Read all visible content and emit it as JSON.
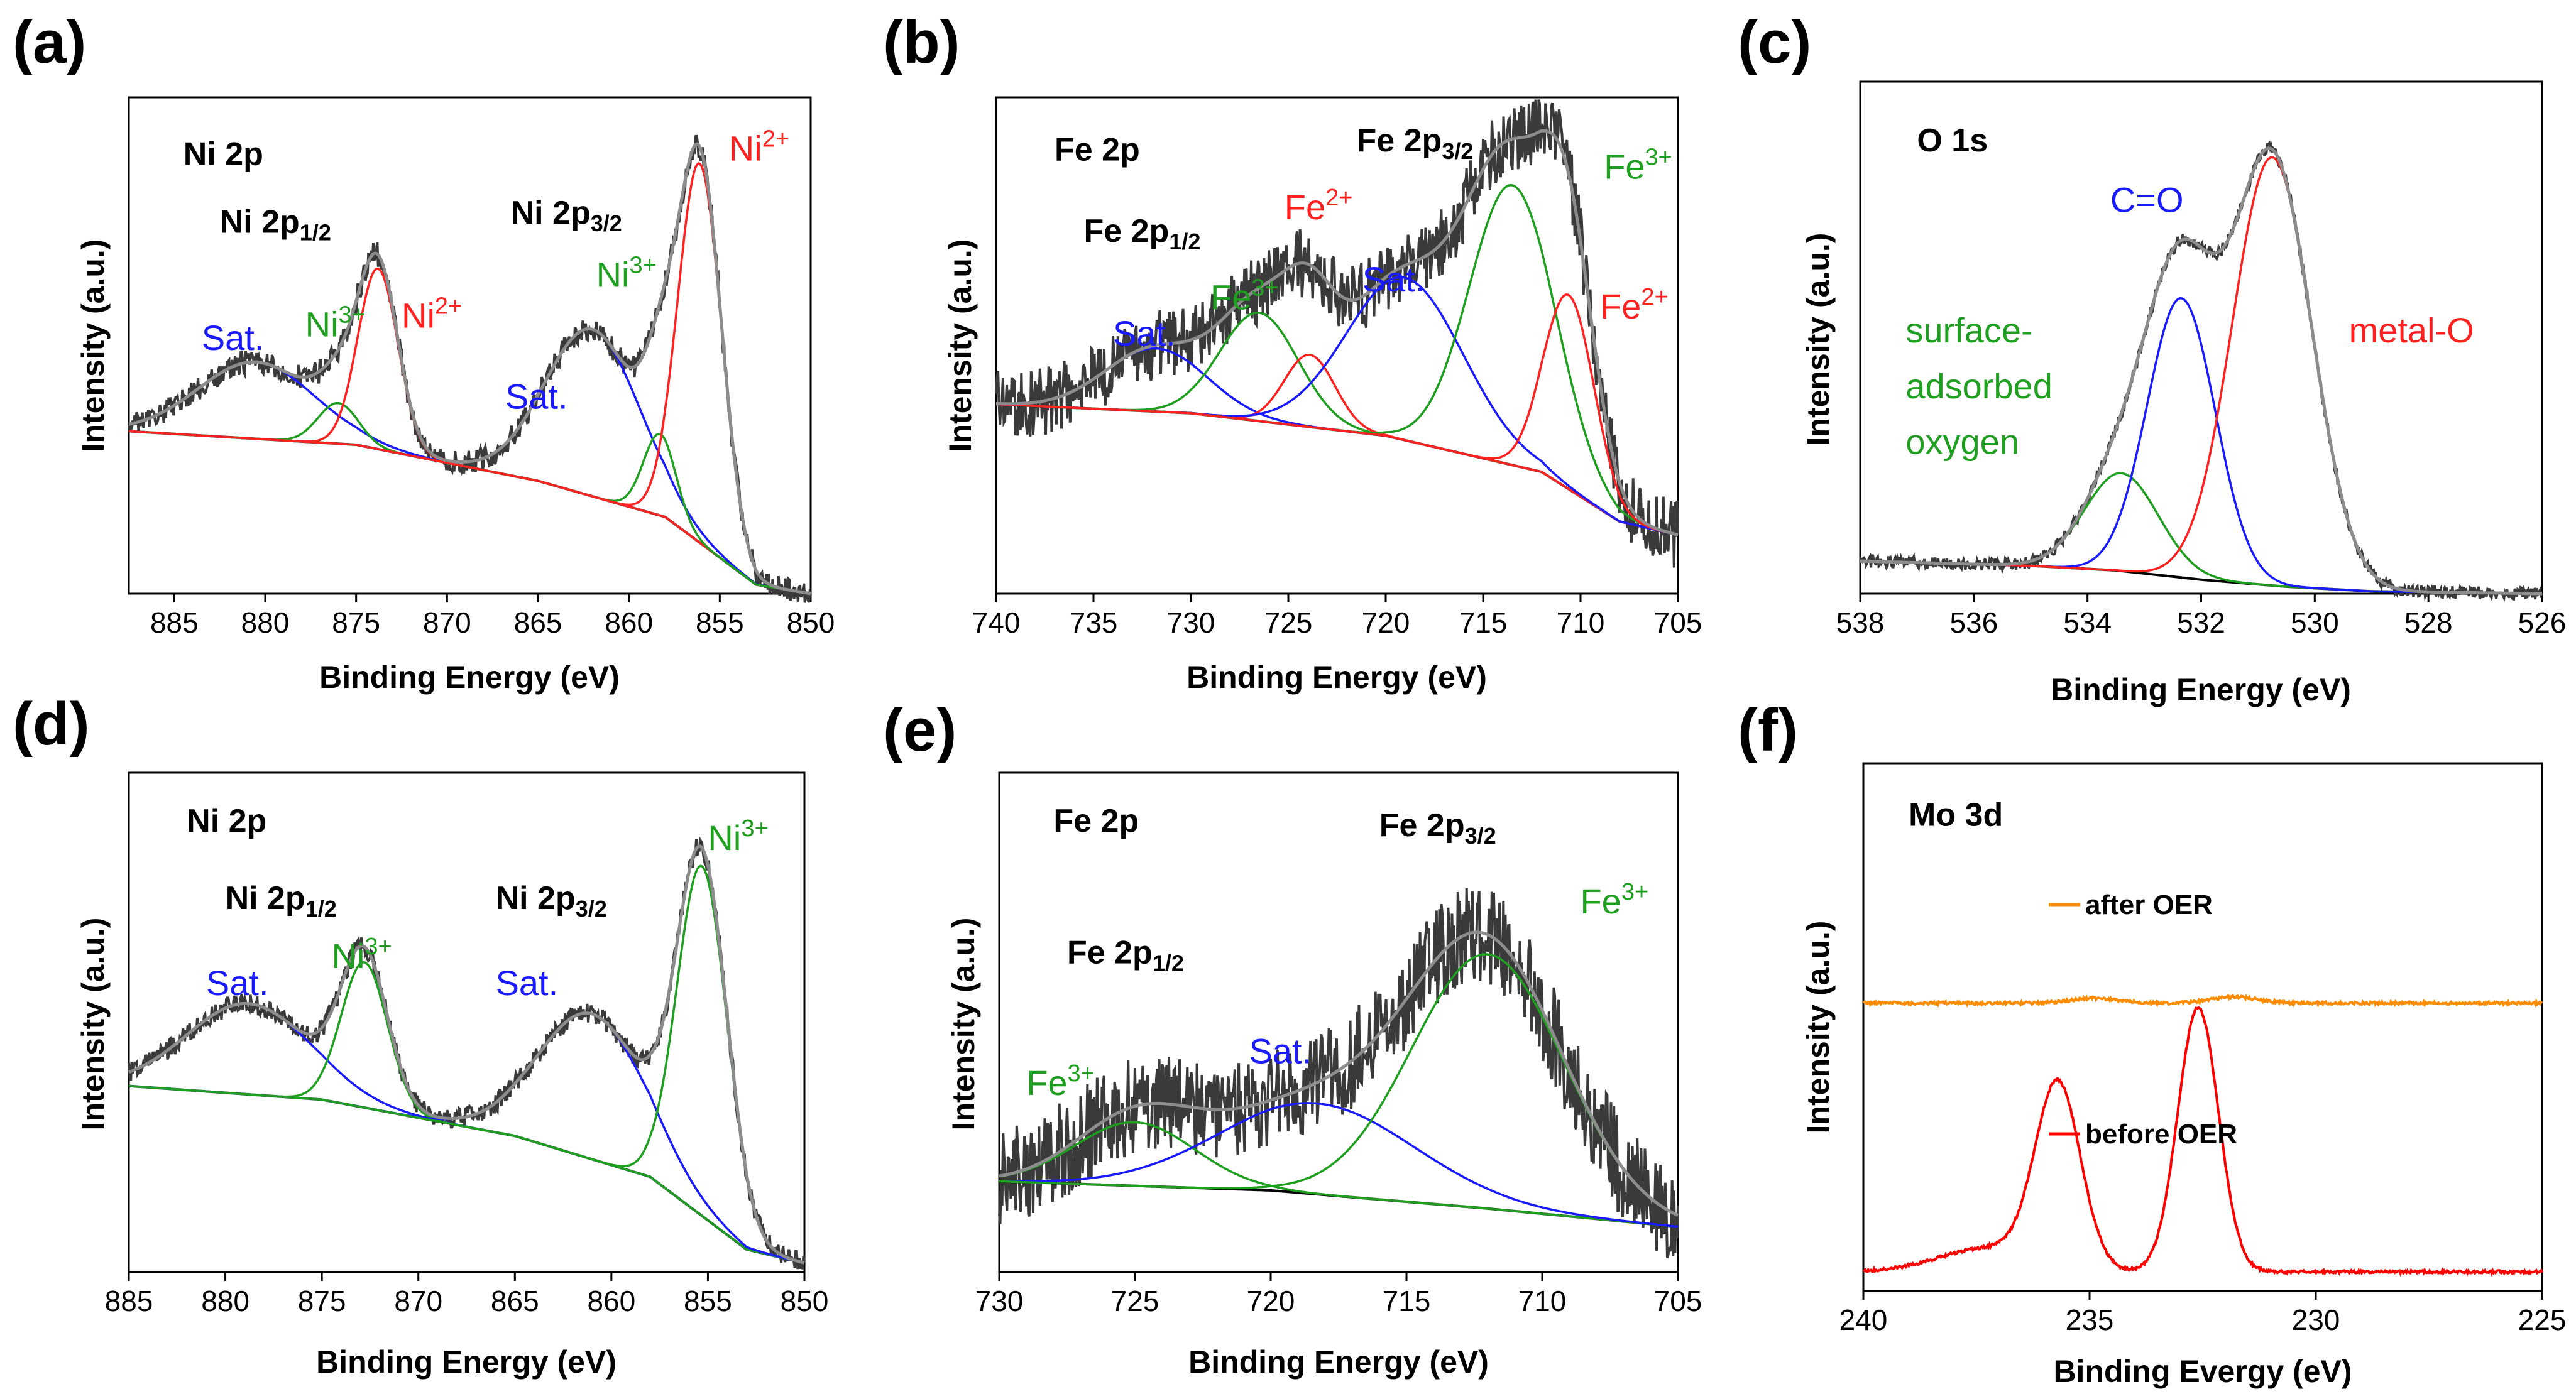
{
  "colors": {
    "raw": "#3a3a3a",
    "envelope": "#8c8c8c",
    "background": "#000000",
    "ni2": "#ff2020",
    "ni3": "#1f9f1f",
    "sat": "#1a1aff",
    "after": "#ff8c00",
    "before": "#ff0000"
  },
  "chart_data": [
    {
      "panel": "(a)",
      "type": "line",
      "xlabel": "Binding Energy (eV)",
      "ylabel": "Intensity (a.u.)",
      "xlim": [
        887.5,
        850
      ],
      "ylim": [
        0,
        1.1
      ],
      "xticks": [
        885,
        880,
        875,
        870,
        865,
        860,
        855,
        850
      ],
      "spectrum_lines": [
        "Ni 2p"
      ],
      "background": {
        "x": [
          887.5,
          875,
          865,
          858,
          853,
          850
        ],
        "y": [
          0.36,
          0.33,
          0.25,
          0.17,
          0.02,
          0.0
        ]
      },
      "peaks": [
        {
          "name": "Sat.",
          "center": 880.5,
          "height": 0.17,
          "width": 3.2,
          "color": "sat"
        },
        {
          "name": "Ni3+",
          "center": 876.0,
          "height": 0.09,
          "width": 1.1,
          "color": "ni3"
        },
        {
          "name": "Ni2+",
          "center": 873.8,
          "height": 0.4,
          "width": 1.1,
          "color": "ni2"
        },
        {
          "name": "Sat.",
          "center": 862.0,
          "height": 0.37,
          "width": 2.6,
          "color": "sat"
        },
        {
          "name": "Ni3+",
          "center": 858.3,
          "height": 0.18,
          "width": 0.9,
          "color": "ni3"
        },
        {
          "name": "Ni2+",
          "center": 856.1,
          "height": 0.84,
          "width": 1.2,
          "color": "ni2"
        }
      ],
      "noise": 0.012,
      "annotations": [
        {
          "text": "Ni 2p",
          "x": 884.5,
          "y": 0.95,
          "style": "bold"
        },
        {
          "text": "Ni 2p",
          "sub": "1/2",
          "x": 882.5,
          "y": 0.8,
          "style": "bold"
        },
        {
          "text": "Ni 2p",
          "sub": "3/2",
          "x": 866.5,
          "y": 0.82,
          "style": "bold"
        },
        {
          "text": "Sat.",
          "x": 883.5,
          "y": 0.54,
          "color": "sat"
        },
        {
          "text": "Ni",
          "sup": "3+",
          "x": 877.8,
          "y": 0.57,
          "color": "ni3"
        },
        {
          "text": "Ni",
          "sup": "2+",
          "x": 872.5,
          "y": 0.59,
          "color": "ni2"
        },
        {
          "text": "Sat.",
          "x": 866.8,
          "y": 0.41,
          "color": "sat"
        },
        {
          "text": "Ni",
          "sup": "3+",
          "x": 861.8,
          "y": 0.68,
          "color": "ni3"
        },
        {
          "text": "Ni",
          "sup": "2+",
          "x": 854.5,
          "y": 0.96,
          "color": "ni2"
        }
      ]
    },
    {
      "panel": "(b)",
      "type": "line",
      "xlabel": "Binding Energy (eV)",
      "ylabel": "Intensity (a.u.)",
      "xlim": [
        740,
        705
      ],
      "ylim": [
        0,
        1.1
      ],
      "xticks": [
        740,
        735,
        730,
        725,
        720,
        715,
        710,
        705
      ],
      "spectrum_lines": [
        "Fe 2p"
      ],
      "background": {
        "x": [
          740,
          730,
          720,
          712,
          708,
          705
        ],
        "y": [
          0.42,
          0.4,
          0.35,
          0.27,
          0.16,
          0.13
        ]
      },
      "peaks": [
        {
          "name": "Sat.",
          "center": 731.8,
          "height": 0.14,
          "width": 2.6,
          "color": "sat"
        },
        {
          "name": "Fe3+",
          "center": 726.5,
          "height": 0.24,
          "width": 2.0,
          "color": "ni3"
        },
        {
          "name": "Fe2+",
          "center": 723.9,
          "height": 0.16,
          "width": 1.3,
          "color": "ni2"
        },
        {
          "name": "Sat.",
          "center": 719.0,
          "height": 0.36,
          "width": 3.0,
          "color": "sat"
        },
        {
          "name": "Fe3+",
          "center": 713.5,
          "height": 0.62,
          "width": 2.2,
          "color": "ni3"
        },
        {
          "name": "Fe2+",
          "center": 710.6,
          "height": 0.43,
          "width": 1.3,
          "color": "ni2"
        }
      ],
      "noise": 0.035,
      "annotations": [
        {
          "text": "Fe 2p",
          "x": 737.0,
          "y": 0.96,
          "style": "bold"
        },
        {
          "text": "Fe 2p",
          "sub": "1/2",
          "x": 735.5,
          "y": 0.78,
          "style": "bold"
        },
        {
          "text": "Fe 2p",
          "sub": "3/2",
          "x": 721.5,
          "y": 0.98,
          "style": "bold"
        },
        {
          "text": "Sat.",
          "x": 734.0,
          "y": 0.55,
          "color": "sat"
        },
        {
          "text": "Fe",
          "sup": "3+",
          "x": 729.0,
          "y": 0.63,
          "color": "ni3"
        },
        {
          "text": "Fe",
          "sup": "2+",
          "x": 725.2,
          "y": 0.83,
          "color": "ni2"
        },
        {
          "text": "Sat.",
          "x": 721.2,
          "y": 0.67,
          "color": "sat"
        },
        {
          "text": "Fe",
          "sup": "3+",
          "x": 708.8,
          "y": 0.92,
          "color": "ni3"
        },
        {
          "text": "Fe",
          "sup": "2+",
          "x": 709.0,
          "y": 0.61,
          "color": "ni2"
        }
      ]
    },
    {
      "panel": "(c)",
      "type": "line",
      "xlabel": "Binding Energy (eV)",
      "ylabel": "Intensity (a.u.)",
      "xlim": [
        538,
        526
      ],
      "ylim": [
        0,
        1.1
      ],
      "xticks": [
        538,
        536,
        534,
        532,
        530,
        528,
        526
      ],
      "spectrum_lines": [
        "O 1s"
      ],
      "background": {
        "x": [
          538,
          535,
          533.5,
          532,
          530.5,
          529,
          526
        ],
        "y": [
          0.07,
          0.06,
          0.05,
          0.03,
          0.015,
          0.005,
          0.0
        ]
      },
      "peaks": [
        {
          "name": "surface-adsorbed oxygen",
          "center": 533.4,
          "height": 0.21,
          "width": 0.65,
          "color": "ni3"
        },
        {
          "name": "C=O",
          "center": 532.35,
          "height": 0.6,
          "width": 0.6,
          "color": "sat"
        },
        {
          "name": "metal-O",
          "center": 530.75,
          "height": 0.92,
          "width": 0.7,
          "color": "ni2"
        }
      ],
      "noise": 0.006,
      "annotations": [
        {
          "text": "O 1s",
          "x": 537.0,
          "y": 0.95,
          "style": "bold"
        },
        {
          "text": "C=O",
          "x": 533.6,
          "y": 0.82,
          "color": "sat"
        },
        {
          "text": "surface-",
          "x": 537.2,
          "y": 0.54,
          "color": "ni3"
        },
        {
          "text": "adsorbed",
          "x": 537.2,
          "y": 0.42,
          "color": "ni3"
        },
        {
          "text": "oxygen",
          "x": 537.2,
          "y": 0.3,
          "color": "ni3"
        },
        {
          "text": "metal-O",
          "x": 529.4,
          "y": 0.54,
          "color": "ni2"
        }
      ]
    },
    {
      "panel": "(d)",
      "type": "line",
      "xlabel": "Binding Energy (eV)",
      "ylabel": "Intensity (a.u.)",
      "xlim": [
        885,
        850
      ],
      "ylim": [
        0,
        1.1
      ],
      "xticks": [
        885,
        880,
        875,
        870,
        865,
        860,
        855,
        850
      ],
      "spectrum_lines": [
        "Ni 2p"
      ],
      "background": {
        "x": [
          885,
          875,
          865,
          858,
          853,
          850
        ],
        "y": [
          0.41,
          0.38,
          0.3,
          0.21,
          0.05,
          0.02
        ]
      },
      "peaks": [
        {
          "name": "Sat.",
          "center": 878.8,
          "height": 0.2,
          "width": 3.2,
          "color": "sat"
        },
        {
          "name": "Ni3+",
          "center": 872.8,
          "height": 0.32,
          "width": 1.2,
          "color": "ni3"
        },
        {
          "name": "Sat.",
          "center": 861.0,
          "height": 0.32,
          "width": 2.8,
          "color": "sat"
        },
        {
          "name": "Ni3+",
          "center": 855.3,
          "height": 0.77,
          "width": 1.3,
          "color": "ni3"
        }
      ],
      "noise": 0.01,
      "annotations": [
        {
          "text": "Ni 2p",
          "x": 882.0,
          "y": 0.97,
          "style": "bold"
        },
        {
          "text": "Ni 2p",
          "sub": "1/2",
          "x": 880.0,
          "y": 0.8,
          "style": "bold"
        },
        {
          "text": "Ni 2p",
          "sub": "3/2",
          "x": 866.0,
          "y": 0.8,
          "style": "bold"
        },
        {
          "text": "Sat.",
          "x": 881.0,
          "y": 0.61,
          "color": "sat"
        },
        {
          "text": "Ni",
          "sup": "3+",
          "x": 874.5,
          "y": 0.67,
          "color": "ni3"
        },
        {
          "text": "Sat.",
          "x": 866.0,
          "y": 0.61,
          "color": "sat"
        },
        {
          "text": "Ni",
          "sup": "3+",
          "x": 855.0,
          "y": 0.93,
          "color": "ni3"
        }
      ]
    },
    {
      "panel": "(e)",
      "type": "line",
      "xlabel": "Binding Energy (eV)",
      "ylabel": "Intensity (a.u.)",
      "xlim": [
        730,
        705
      ],
      "ylim": [
        0,
        1.1
      ],
      "xticks": [
        730,
        725,
        720,
        715,
        710,
        705
      ],
      "spectrum_lines": [
        "Fe 2p"
      ],
      "background": {
        "x": [
          730,
          720,
          712,
          705
        ],
        "y": [
          0.2,
          0.18,
          0.14,
          0.1
        ]
      },
      "peaks": [
        {
          "name": "Fe3+",
          "center": 725.0,
          "height": 0.14,
          "width": 2.2,
          "color": "ni3"
        },
        {
          "name": "Sat.",
          "center": 718.3,
          "height": 0.2,
          "width": 3.6,
          "color": "sat"
        },
        {
          "name": "Fe3+",
          "center": 712.0,
          "height": 0.56,
          "width": 2.8,
          "color": "ni3"
        }
      ],
      "noise": 0.05,
      "annotations": [
        {
          "text": "Fe 2p",
          "x": 728.0,
          "y": 0.97,
          "style": "bold"
        },
        {
          "text": "Fe 2p",
          "sub": "1/2",
          "x": 727.5,
          "y": 0.68,
          "style": "bold"
        },
        {
          "text": "Fe 2p",
          "sub": "3/2",
          "x": 716.0,
          "y": 0.96,
          "style": "bold"
        },
        {
          "text": "Sat.",
          "x": 720.8,
          "y": 0.46,
          "color": "sat"
        },
        {
          "text": "Fe",
          "sup": "3+",
          "x": 729.0,
          "y": 0.39,
          "color": "ni3"
        },
        {
          "text": "Fe",
          "sup": "3+",
          "x": 708.6,
          "y": 0.79,
          "color": "ni3"
        }
      ]
    },
    {
      "panel": "(f)",
      "type": "line",
      "xlabel": "Binding Evergy (eV)",
      "ylabel": "Intensity (a.u.)",
      "xlim": [
        240,
        225
      ],
      "ylim": [
        0,
        1.1
      ],
      "xticks": [
        240,
        235,
        230,
        225
      ],
      "spectrum_lines": [
        "Mo 3d"
      ],
      "series": [
        {
          "name": "after OER",
          "color": "after",
          "baseline": 0.6,
          "peaks": [
            [
              234.9,
              0.01,
              0.5
            ],
            [
              231.8,
              0.013,
              0.5
            ]
          ],
          "noise": 0.003
        },
        {
          "name": "before OER",
          "color": "before",
          "baseline": 0.04,
          "peaks": [
            [
              235.7,
              0.38,
              0.5
            ],
            [
              232.6,
              0.55,
              0.45
            ]
          ],
          "shoulder": [
            [
              237.2,
              0.05,
              1.1
            ]
          ],
          "noise": 0.003
        }
      ],
      "annotations": [
        {
          "text": "Mo 3d",
          "x": 239.0,
          "y": 0.97,
          "style": "bold"
        }
      ]
    }
  ]
}
